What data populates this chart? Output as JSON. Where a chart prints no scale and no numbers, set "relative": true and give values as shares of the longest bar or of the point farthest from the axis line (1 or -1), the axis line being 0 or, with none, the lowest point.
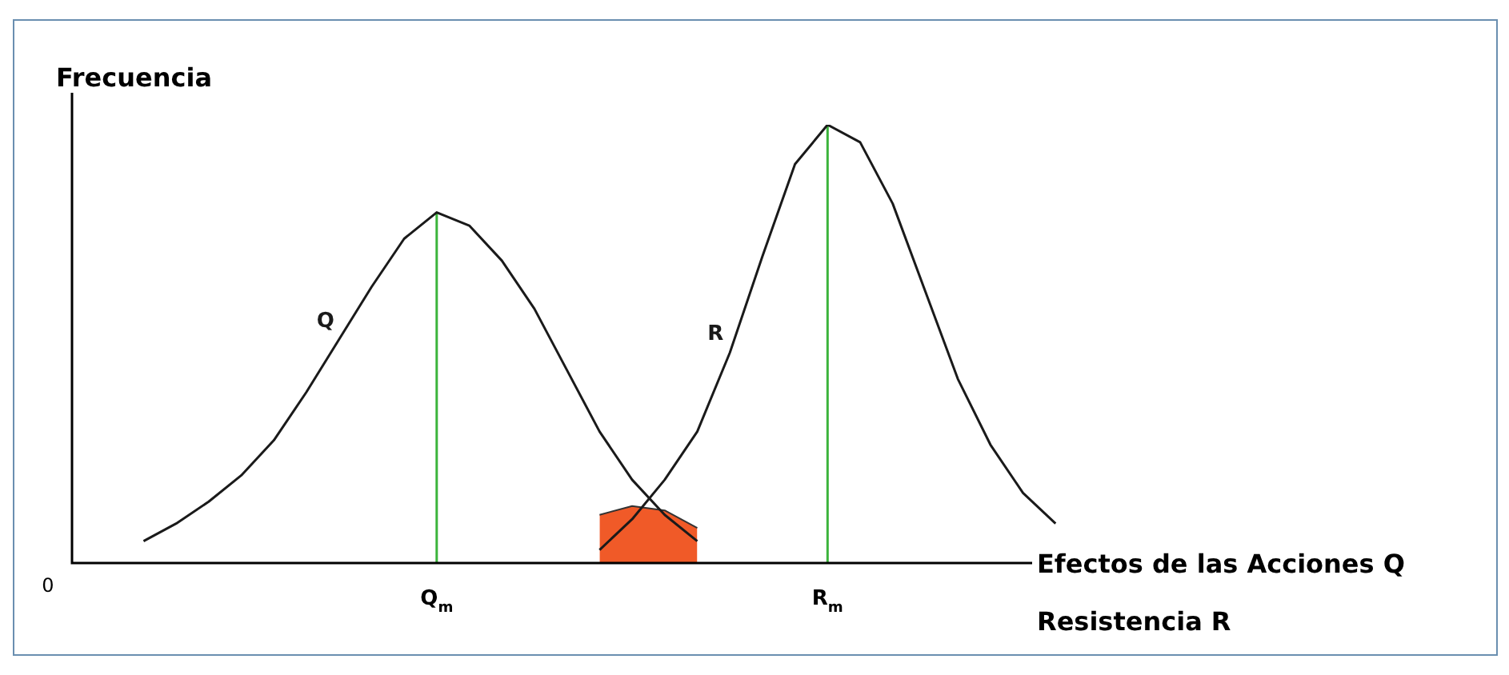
{
  "chart_data": {
    "type": "line",
    "relative": true,
    "ylabel": "Frecuencia",
    "xlabel": "Efectos de las Acciones Q",
    "legend": false,
    "marker": "none",
    "line_style": "solid",
    "categories": [
      null,
      null,
      null,
      null,
      null,
      null,
      null,
      null,
      null,
      null,
      null,
      "Q$_{m}$",
      null,
      null,
      null,
      null,
      null,
      null,
      null,
      null,
      null,
      null,
      null,
      "R$_{m}$",
      null,
      null,
      null,
      null,
      null,
      null,
      null,
      null
    ],
    "series": [
      {
        "type": "area",
        "color": "#f05a28",
        "values": [
          null,
          null,
          null,
          null,
          null,
          null,
          null,
          null,
          null,
          null,
          null,
          null,
          null,
          null,
          null,
          null,
          0.11,
          0.13,
          0.12,
          0.08,
          null,
          null,
          null,
          null,
          null,
          null,
          null,
          null,
          null,
          null,
          null,
          null
        ]
      },
      {
        "name": "Q",
        "color": "#1a1a1a",
        "values": [
          null,
          null,
          0.05,
          0.09,
          0.14,
          0.2,
          0.28,
          0.39,
          0.51,
          0.63,
          0.74,
          0.8,
          0.77,
          0.69,
          0.58,
          0.44,
          0.3,
          0.19,
          0.11,
          0.05,
          null,
          null,
          null,
          null,
          null,
          null,
          null,
          null,
          null,
          null,
          null,
          null
        ]
      },
      {
        "name": "R",
        "color": "#1a1a1a",
        "values": [
          null,
          null,
          null,
          null,
          null,
          null,
          null,
          null,
          null,
          null,
          null,
          null,
          null,
          null,
          null,
          null,
          0.03,
          0.1,
          0.19,
          0.3,
          0.48,
          0.7,
          0.91,
          1,
          0.96,
          0.82,
          0.62,
          0.42,
          0.27,
          0.16,
          0.09,
          null
        ]
      }
    ],
    "ref_lines": [
      {
        "axis": "x",
        "value": "Q$_{m}$",
        "color": "#3cb43c"
      },
      {
        "axis": "x",
        "value": "R$_{m}$",
        "color": "#3cb43c"
      }
    ],
    "annotations": [
      "0",
      "Resistencia R"
    ]
  }
}
